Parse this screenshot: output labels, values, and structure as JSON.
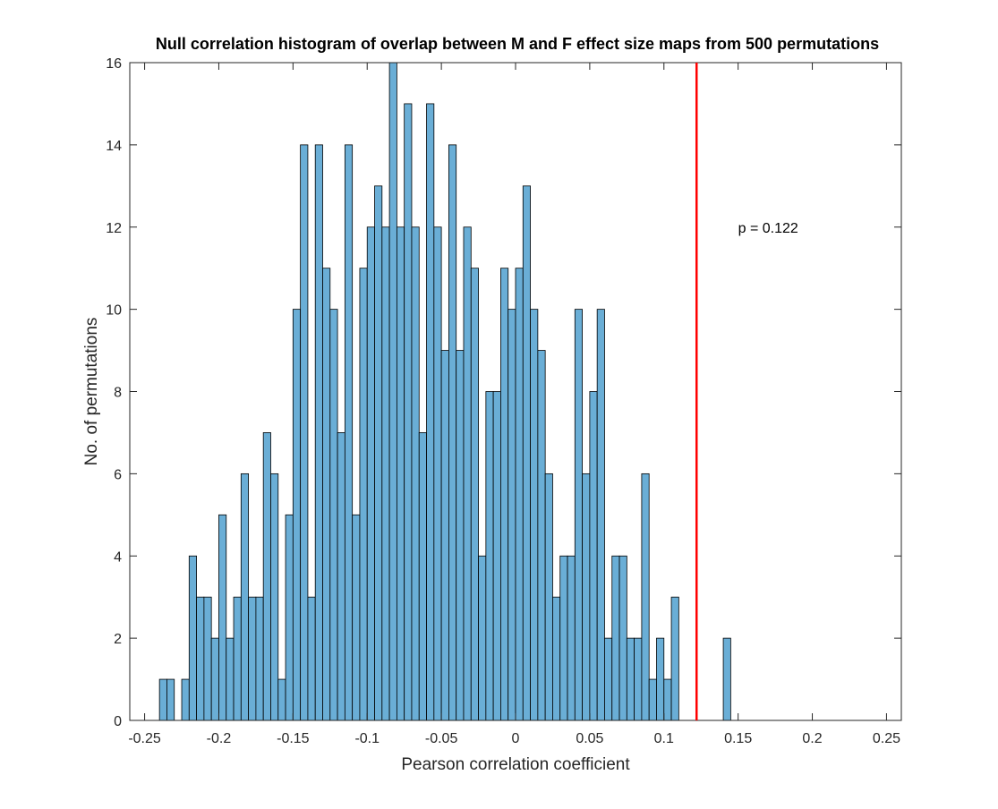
{
  "chart_data": {
    "type": "bar",
    "title": "Null correlation histogram of overlap between M and F effect size maps from 500 permutations",
    "xlabel": "Pearson correlation coefficient",
    "ylabel": "No. of permutations",
    "xlim": [
      -0.26,
      0.26
    ],
    "ylim": [
      0,
      16
    ],
    "xticks": [
      -0.25,
      -0.2,
      -0.15,
      -0.1,
      -0.05,
      0,
      0.05,
      0.1,
      0.15,
      0.2,
      0.25
    ],
    "xtick_labels": [
      "-0.25",
      "-0.2",
      "-0.15",
      "-0.1",
      "-0.05",
      "0",
      "0.05",
      "0.1",
      "0.15",
      "0.2",
      "0.25"
    ],
    "yticks": [
      0,
      2,
      4,
      6,
      8,
      10,
      12,
      14,
      16
    ],
    "ytick_labels": [
      "0",
      "2",
      "4",
      "6",
      "8",
      "10",
      "12",
      "14",
      "16"
    ],
    "bin_start": -0.24,
    "bin_width": 0.005,
    "bar_color": "#6aaed6",
    "edge_color": "#000000",
    "counts": [
      1,
      1,
      0,
      1,
      4,
      3,
      3,
      2,
      5,
      2,
      3,
      6,
      3,
      3,
      7,
      6,
      1,
      5,
      10,
      14,
      3,
      14,
      11,
      10,
      7,
      14,
      5,
      11,
      12,
      13,
      12,
      16,
      12,
      15,
      12,
      7,
      15,
      12,
      9,
      14,
      9,
      12,
      11,
      4,
      8,
      8,
      11,
      10,
      11,
      13,
      10,
      9,
      6,
      3,
      4,
      4,
      10,
      6,
      8,
      10,
      2,
      4,
      4,
      2,
      2,
      6,
      1,
      2,
      1,
      3,
      0,
      0,
      0,
      0,
      0,
      0,
      2
    ],
    "reference_line": {
      "x": 0.122,
      "color": "#ff0000"
    },
    "annotation": "p = 0.122",
    "annotation_pos": {
      "x": 0.15,
      "y": 12
    }
  }
}
